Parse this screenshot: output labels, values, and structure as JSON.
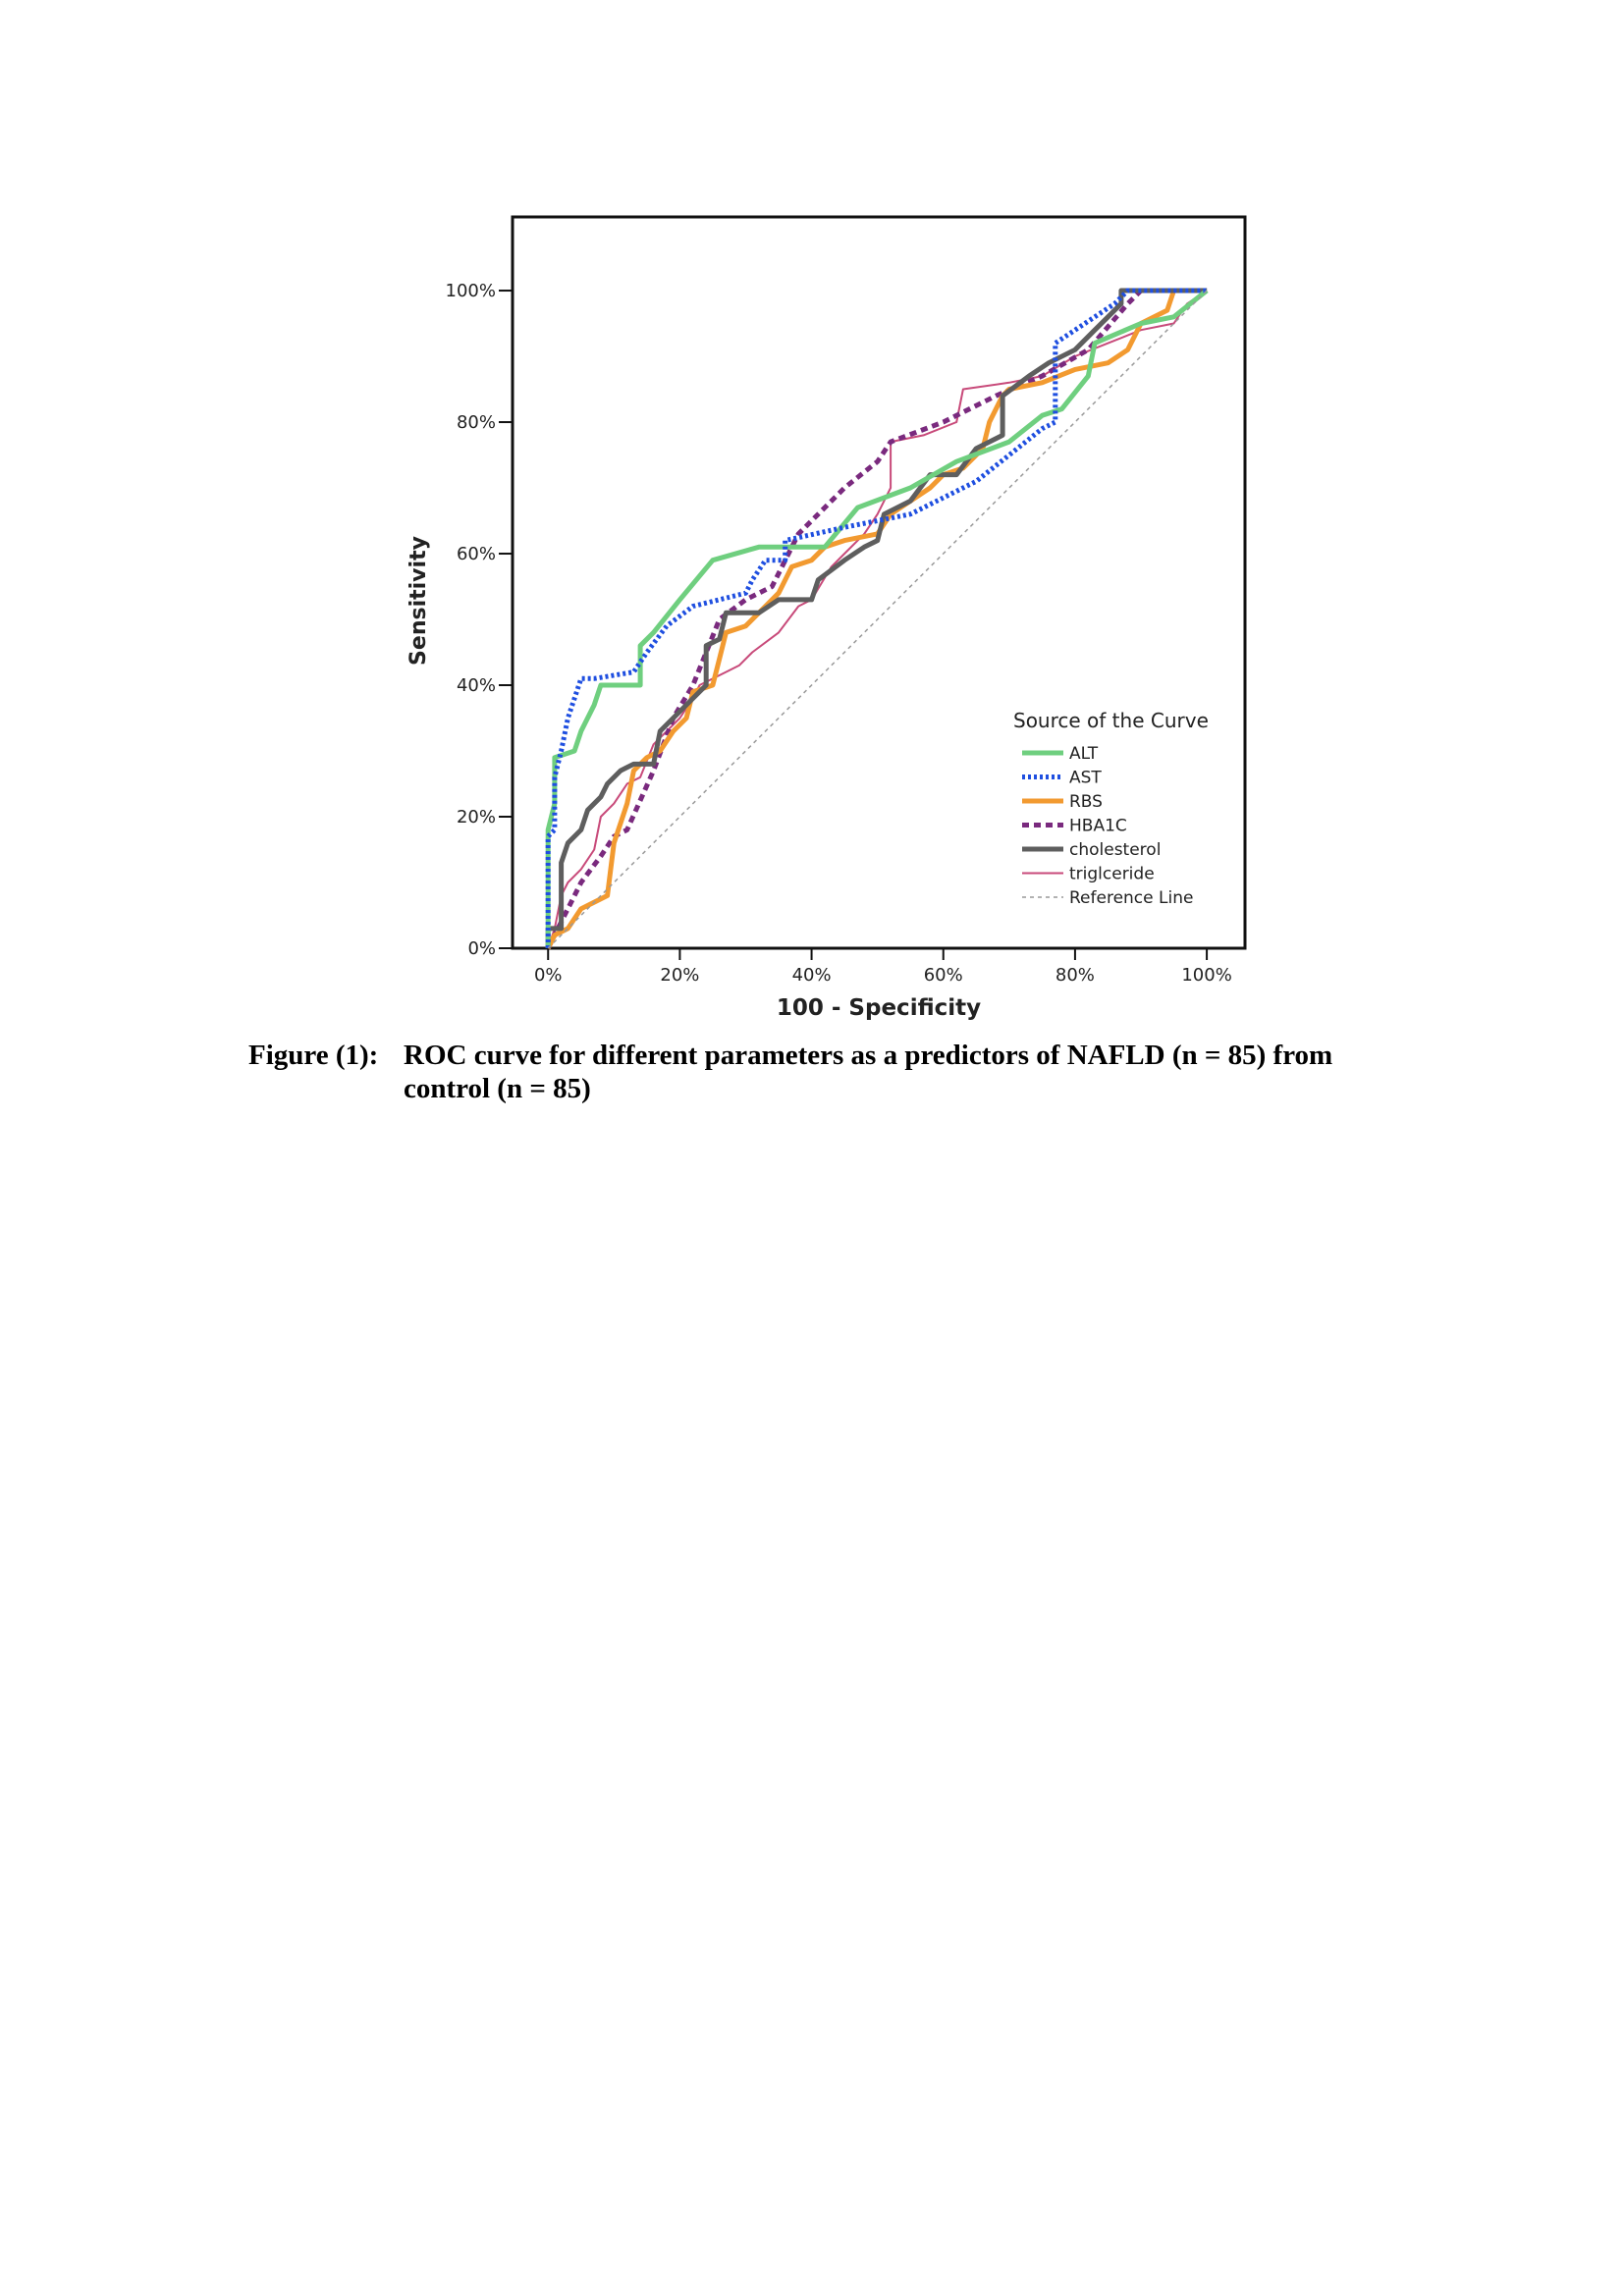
{
  "chart_data": {
    "type": "line",
    "xlabel": "100 - Specificity",
    "ylabel": "Sensitivity",
    "xlim": [
      -5.4,
      105.8
    ],
    "ylim": [
      0,
      111.2
    ],
    "xticks": [
      {
        "value": 0,
        "label": "0%"
      },
      {
        "value": 20,
        "label": "20%"
      },
      {
        "value": 40,
        "label": "40%"
      },
      {
        "value": 60,
        "label": "60%"
      },
      {
        "value": 80,
        "label": "80%"
      },
      {
        "value": 100,
        "label": "100%"
      }
    ],
    "yticks": [
      {
        "value": 0,
        "label": "0%"
      },
      {
        "value": 20,
        "label": "20%"
      },
      {
        "value": 40,
        "label": "40%"
      },
      {
        "value": 60,
        "label": "60%"
      },
      {
        "value": 80,
        "label": "80%"
      },
      {
        "value": 100,
        "label": "100%"
      }
    ],
    "legend_title": "Source of the Curve",
    "legend_position": "lower right",
    "series": [
      {
        "name": "ALT",
        "color": "#6fcf7f",
        "style": "solid",
        "width": 5,
        "x": [
          0,
          0,
          1,
          1,
          4,
          5,
          7,
          8,
          14,
          14,
          16,
          20,
          25,
          32,
          42,
          47,
          55,
          62,
          70,
          75,
          78,
          82,
          83,
          90,
          95,
          100
        ],
        "values": [
          0,
          18,
          22,
          29,
          30,
          33,
          37,
          40,
          40,
          46,
          48,
          53,
          59,
          61,
          61,
          67,
          70,
          74,
          77,
          81,
          82,
          87,
          92,
          95,
          96,
          100
        ]
      },
      {
        "name": "AST",
        "color": "#1f4fe0",
        "style": "dotted",
        "width": 5,
        "x": [
          0,
          0,
          1,
          1,
          2,
          3,
          4,
          5,
          7,
          13,
          15,
          18,
          22,
          30,
          31,
          33,
          36,
          36,
          45,
          55,
          65,
          75,
          77,
          77,
          80,
          83,
          86,
          88,
          100
        ],
        "values": [
          0,
          17,
          18,
          26,
          30,
          35,
          38,
          41,
          41,
          42,
          45,
          49,
          52,
          54,
          56,
          59,
          59,
          62,
          64,
          66,
          71,
          79,
          80,
          92,
          94,
          96,
          98,
          100,
          100
        ]
      },
      {
        "name": "RBS",
        "color": "#f29a30",
        "style": "solid",
        "width": 5,
        "x": [
          0,
          1,
          3,
          5,
          7,
          9,
          10,
          12,
          13,
          15,
          17,
          19,
          21,
          22,
          25,
          26,
          27,
          30,
          33,
          35,
          37,
          40,
          42,
          45,
          50,
          52,
          55,
          58,
          60,
          63,
          66,
          67,
          69,
          70,
          75,
          80,
          85,
          88,
          90,
          94,
          95,
          100
        ],
        "values": [
          0,
          2,
          3,
          6,
          7,
          8,
          16,
          22,
          27,
          29,
          30,
          33,
          35,
          39,
          40,
          44,
          48,
          49,
          52,
          54,
          58,
          59,
          61,
          62,
          63,
          66,
          68,
          70,
          72,
          73,
          76,
          80,
          84,
          85,
          86,
          88,
          89,
          91,
          95,
          97,
          100,
          100
        ]
      },
      {
        "name": "HBA1C",
        "color": "#7a2a7e",
        "style": "dashed",
        "width": 5,
        "x": [
          0,
          2,
          5,
          8,
          10,
          12,
          16,
          19,
          22,
          26,
          30,
          34,
          38,
          45,
          50,
          52,
          60,
          68,
          75,
          82,
          88,
          90,
          100
        ],
        "values": [
          0,
          4,
          10,
          14,
          17,
          18,
          27,
          35,
          40,
          50,
          53,
          55,
          63,
          70,
          74,
          77,
          80,
          84,
          87,
          91,
          98,
          100,
          100
        ]
      },
      {
        "name": "cholesterol",
        "color": "#5e5e5e",
        "style": "solid",
        "width": 5,
        "x": [
          0,
          0,
          2,
          2,
          3,
          5,
          6,
          8,
          9,
          11,
          13,
          16,
          17,
          19,
          22,
          24,
          24,
          26,
          27,
          32,
          35,
          40,
          41,
          45,
          48,
          50,
          51,
          55,
          58,
          62,
          65,
          69,
          69,
          73,
          76,
          80,
          83,
          85,
          87,
          87,
          100
        ],
        "values": [
          0,
          3,
          3,
          13,
          16,
          18,
          21,
          23,
          25,
          27,
          28,
          28,
          33,
          35,
          38,
          40,
          46,
          47,
          51,
          51,
          53,
          53,
          56,
          59,
          61,
          62,
          66,
          68,
          72,
          72,
          76,
          78,
          84,
          87,
          89,
          91,
          94,
          96,
          98,
          100,
          100
        ]
      },
      {
        "name": "triglceride",
        "color": "#c84a7a",
        "style": "solid",
        "width": 2,
        "x": [
          0,
          1,
          2,
          3,
          5,
          7,
          8,
          10,
          12,
          14,
          16,
          18,
          20,
          22,
          23,
          27,
          29,
          31,
          35,
          38,
          40,
          43,
          45,
          48,
          50,
          52,
          52,
          57,
          62,
          63,
          70,
          75,
          80,
          85,
          90,
          95,
          97,
          100
        ],
        "values": [
          0,
          3,
          8,
          10,
          12,
          15,
          20,
          22,
          25,
          26,
          31,
          33,
          35,
          38,
          40,
          42,
          43,
          45,
          48,
          52,
          53,
          58,
          60,
          63,
          66,
          70,
          77,
          78,
          80,
          85,
          86,
          87,
          90,
          92,
          94,
          95,
          98,
          100
        ]
      },
      {
        "name": "Reference Line",
        "color": "#999999",
        "style": "ref",
        "width": 1.5,
        "x": [
          0,
          100
        ],
        "values": [
          0,
          100
        ]
      }
    ]
  },
  "caption": {
    "label": "Figure (1):",
    "text": "ROC curve for different parameters as a predictors of NAFLD (n = 85) from control (n = 85)"
  }
}
